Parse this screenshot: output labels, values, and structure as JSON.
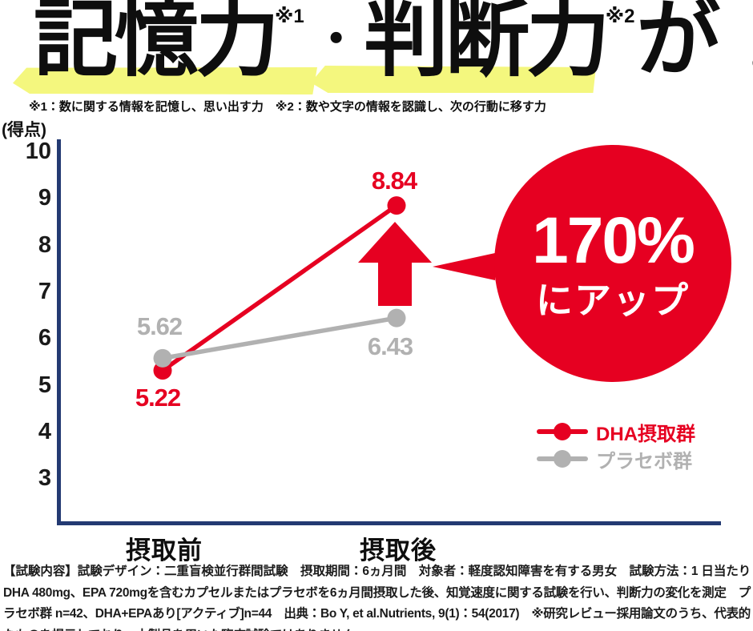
{
  "header": {
    "title_part1": "記憶力",
    "title_sup1": "※1",
    "title_dot": "・",
    "title_part2": "判断力",
    "title_sup2": "※2",
    "title_part3": "が！",
    "footnote": "※1：数に関する情報を記憶し、思い出す力　※2：数や文字の情報を認識し、次の行動に移す力",
    "highlight_color": "#f4f77e"
  },
  "chart_data": {
    "type": "line",
    "title": "",
    "ylabel": "(得点)",
    "xlabel": "",
    "categories": [
      "摂取前",
      "摂取後"
    ],
    "series": [
      {
        "name": "DHA摂取群",
        "values": [
          5.22,
          8.84
        ],
        "color": "#e60021"
      },
      {
        "name": "プラセボ群",
        "values": [
          5.62,
          6.43
        ],
        "color": "#b1b1b1"
      }
    ],
    "value_labels": [
      [
        "5.22",
        "8.84"
      ],
      [
        "5.62",
        "6.43"
      ]
    ],
    "yticks": [
      10,
      9,
      8,
      7,
      6,
      5,
      4,
      3
    ],
    "ylim": [
      2,
      10
    ],
    "grid": false,
    "legend_position": "right-bottom",
    "axis_color": "#233a72"
  },
  "callout": {
    "line1": "170%",
    "line2": "にアップ",
    "color": "#e60021"
  },
  "footer": {
    "text": "【試験内容】試験デザイン：二重盲検並行群間試験　摂取期間：6ヵ月間　対象者：軽度認知障害を有する男女　試験方法：1 日当たりDHA 480mg、EPA 720mgを含むカプセルまたはプラセボを6ヵ月間摂取した後、知覚速度に関する試験を行い、判断力の変化を測定　プラセボ群 n=42、DHA+EPAあり[アクティブ]n=44　出典：Bo Y, et al.Nutrients, 9(1)：54(2017)　※研究レビュー採用論文のうち、代表的なものを掲示しており、本製品を用いた臨床試験ではありません。"
  }
}
